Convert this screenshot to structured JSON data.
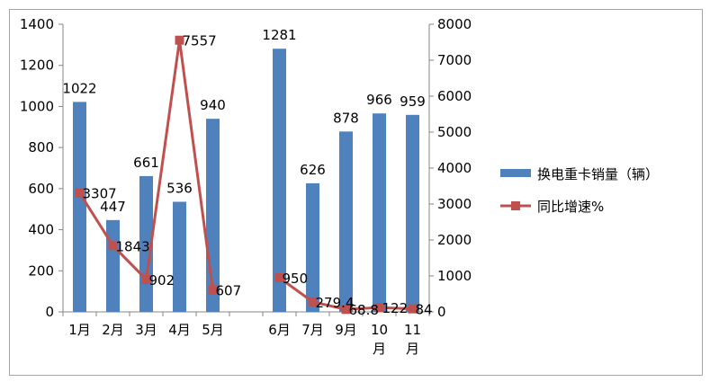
{
  "chart_data": {
    "type": "bar+line",
    "categories": [
      "1月",
      "2月",
      "3月",
      "4月",
      "5月",
      "",
      "6月",
      "7月",
      "9月",
      "10月",
      "11月"
    ],
    "series": [
      {
        "name": "换电重卡销量（辆）",
        "type": "bar",
        "axis": "left",
        "color": "#4f81bd",
        "values": [
          1022,
          447,
          661,
          536,
          940,
          null,
          1281,
          626,
          878,
          966,
          959
        ],
        "labels": [
          "1022",
          "447",
          "661",
          "536",
          "940",
          "",
          "1281",
          "626",
          "878",
          "966",
          "959"
        ]
      },
      {
        "name": "同比增速%",
        "type": "line",
        "axis": "right",
        "color": "#c0504d",
        "values": [
          3307,
          1843,
          902,
          7557,
          607,
          null,
          950,
          279.4,
          68.8,
          122,
          84
        ],
        "labels": [
          "3307",
          "1843",
          "902",
          "7557",
          "607",
          "",
          "950",
          "279.4",
          "68.8",
          "122",
          "84"
        ]
      }
    ],
    "y_left": {
      "min": 0,
      "max": 1400,
      "step": 200,
      "ticks": [
        "0",
        "200",
        "400",
        "600",
        "800",
        "1000",
        "1200",
        "1400"
      ]
    },
    "y_right": {
      "min": 0,
      "max": 8000,
      "step": 1000,
      "ticks": [
        "0",
        "1000",
        "2000",
        "3000",
        "4000",
        "5000",
        "6000",
        "7000",
        "8000"
      ]
    },
    "category_tick_lines": [
      [
        "1月"
      ],
      [
        "2月"
      ],
      [
        "3月"
      ],
      [
        "4月"
      ],
      [
        "5月"
      ],
      [
        ""
      ],
      [
        "6月"
      ],
      [
        "7月"
      ],
      [
        "9月"
      ],
      [
        "10",
        "月"
      ],
      [
        "11",
        "月"
      ]
    ],
    "legend_position": "right",
    "grid": false
  }
}
